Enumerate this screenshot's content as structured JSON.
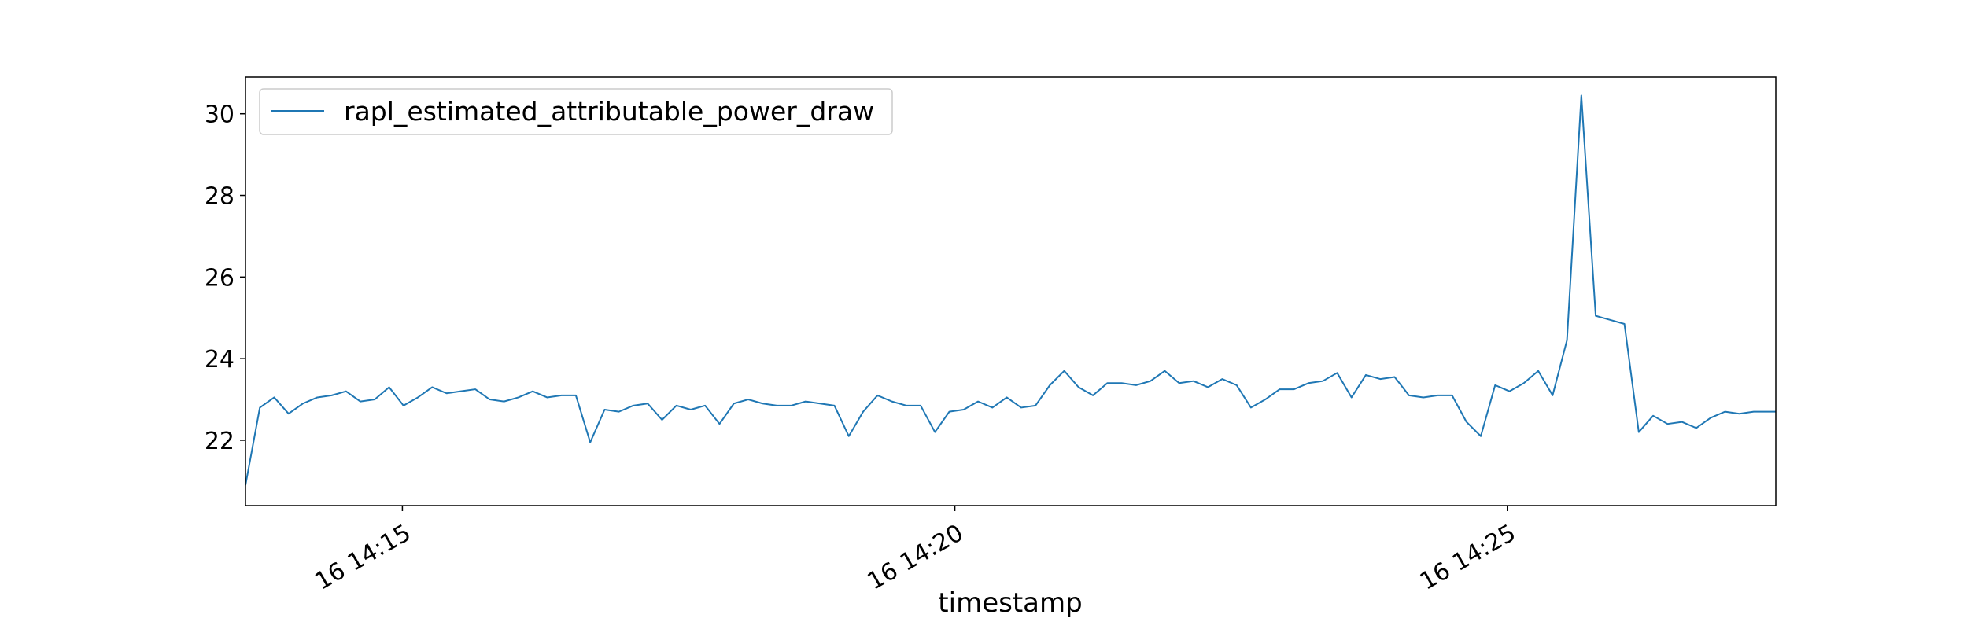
{
  "chart_data": {
    "type": "line",
    "title": "",
    "xlabel": "timestamp",
    "ylabel": "",
    "x_tick_labels": [
      "16 14:15",
      "16 14:20",
      "16 14:25"
    ],
    "y_ticks": [
      22,
      24,
      26,
      28,
      30
    ],
    "y_tick_labels": [
      "22",
      "24",
      "26",
      "28",
      "30"
    ],
    "ylim": [
      20.4,
      30.9
    ],
    "xlim_minutes": [
      13.58,
      27.43
    ],
    "grid": false,
    "legend_position": "upper-left",
    "series": [
      {
        "name": "rapl_estimated_attributable_power_draw",
        "color": "#1f77b4",
        "x_minutes_after_14_00": [
          13.58,
          13.71,
          13.84,
          13.97,
          14.1,
          14.23,
          14.36,
          14.49,
          14.62,
          14.75,
          14.88,
          15.01,
          15.14,
          15.27,
          15.4,
          15.53,
          15.66,
          15.79,
          15.92,
          16.05,
          16.18,
          16.31,
          16.44,
          16.57,
          16.7,
          16.83,
          16.96,
          17.09,
          17.22,
          17.35,
          17.48,
          17.61,
          17.74,
          17.87,
          18.0,
          18.13,
          18.26,
          18.39,
          18.52,
          18.65,
          18.78,
          18.91,
          19.04,
          19.17,
          19.3,
          19.43,
          19.56,
          19.69,
          19.82,
          19.95,
          20.08,
          20.21,
          20.34,
          20.47,
          20.6,
          20.73,
          20.86,
          20.99,
          21.12,
          21.25,
          21.38,
          21.51,
          21.64,
          21.77,
          21.9,
          22.03,
          22.16,
          22.29,
          22.42,
          22.55,
          22.68,
          22.81,
          22.94,
          23.07,
          23.2,
          23.33,
          23.46,
          23.59,
          23.72,
          23.85,
          23.98,
          24.11,
          24.24,
          24.37,
          24.5,
          24.63,
          24.76,
          24.89,
          25.02,
          25.15,
          25.28,
          25.41,
          25.54,
          25.67,
          25.8,
          25.93,
          26.06,
          26.19,
          26.32,
          26.45,
          26.58,
          26.71,
          26.84,
          26.97,
          27.1,
          27.23,
          27.36,
          27.43
        ],
        "values": [
          20.9,
          22.8,
          23.05,
          22.65,
          22.9,
          23.05,
          23.1,
          23.2,
          22.95,
          23.0,
          23.3,
          22.85,
          23.05,
          23.3,
          23.15,
          23.2,
          23.25,
          23.0,
          22.95,
          23.05,
          23.2,
          23.05,
          23.1,
          23.1,
          21.95,
          22.75,
          22.7,
          22.85,
          22.9,
          22.5,
          22.85,
          22.75,
          22.85,
          22.4,
          22.9,
          23.0,
          22.9,
          22.85,
          22.85,
          22.95,
          22.9,
          22.85,
          22.1,
          22.7,
          23.1,
          22.95,
          22.85,
          22.85,
          22.2,
          22.7,
          22.75,
          22.95,
          22.8,
          23.05,
          22.8,
          22.85,
          23.35,
          23.7,
          23.3,
          23.1,
          23.4,
          23.4,
          23.35,
          23.45,
          23.7,
          23.4,
          23.45,
          23.3,
          23.5,
          23.35,
          22.8,
          23.0,
          23.25,
          23.25,
          23.4,
          23.45,
          23.65,
          23.05,
          23.6,
          23.5,
          23.55,
          23.1,
          23.05,
          23.1,
          23.1,
          22.45,
          22.1,
          23.35,
          23.2,
          23.4,
          23.7,
          23.1,
          24.45,
          30.45,
          25.05,
          24.95,
          24.85,
          22.2,
          22.6,
          22.4,
          22.45,
          22.3,
          22.55,
          22.7,
          22.65,
          22.7,
          22.7,
          22.7
        ]
      }
    ]
  }
}
